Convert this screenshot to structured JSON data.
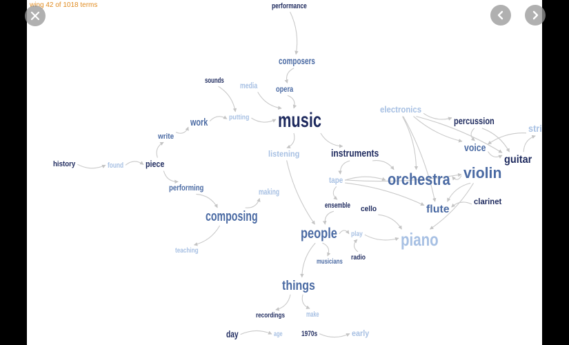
{
  "viewer": {
    "status_text": "wing 42 of 1018 terms"
  },
  "controls": {
    "close_icon": "close-icon",
    "prev_icon": "chevron-left-icon",
    "next_icon": "chevron-right-icon"
  },
  "colors": {
    "dark": "#1e2a5e",
    "mid": "#4a6aa3",
    "light": "#a7c0e3",
    "edge": "#c9c9c9",
    "status": "#e08a1e"
  },
  "graph": {
    "terms": [
      {
        "id": "performance",
        "label": "performance",
        "tone": "dark",
        "size": 11
      },
      {
        "id": "composers",
        "label": "composers",
        "tone": "mid",
        "size": 14
      },
      {
        "id": "sounds",
        "label": "sounds",
        "tone": "dark",
        "size": 11
      },
      {
        "id": "media",
        "label": "media",
        "tone": "light",
        "size": 12
      },
      {
        "id": "opera",
        "label": "opera",
        "tone": "mid",
        "size": 12
      },
      {
        "id": "work",
        "label": "work",
        "tone": "mid",
        "size": 15
      },
      {
        "id": "putting",
        "label": "putting",
        "tone": "light",
        "size": 10
      },
      {
        "id": "music",
        "label": "music",
        "tone": "dark",
        "size": 30
      },
      {
        "id": "electronics",
        "label": "electronics",
        "tone": "light",
        "size": 13
      },
      {
        "id": "percussion",
        "label": "percussion",
        "tone": "dark",
        "size": 14
      },
      {
        "id": "string",
        "label": "string",
        "tone": "light",
        "size": 14
      },
      {
        "id": "write",
        "label": "write",
        "tone": "mid",
        "size": 11
      },
      {
        "id": "voice",
        "label": "voice",
        "tone": "mid",
        "size": 15
      },
      {
        "id": "guitar",
        "label": "guitar",
        "tone": "dark",
        "size": 16
      },
      {
        "id": "listening",
        "label": "listening",
        "tone": "light",
        "size": 12
      },
      {
        "id": "instruments",
        "label": "instruments",
        "tone": "dark",
        "size": 15
      },
      {
        "id": "history",
        "label": "history",
        "tone": "dark",
        "size": 11
      },
      {
        "id": "found",
        "label": "found",
        "tone": "light",
        "size": 11
      },
      {
        "id": "piece",
        "label": "piece",
        "tone": "dark",
        "size": 13
      },
      {
        "id": "violin",
        "label": "violin",
        "tone": "mid",
        "size": 22
      },
      {
        "id": "tape",
        "label": "tape",
        "tone": "light",
        "size": 12
      },
      {
        "id": "orchestra",
        "label": "orchestra",
        "tone": "mid",
        "size": 24
      },
      {
        "id": "performing",
        "label": "performing",
        "tone": "mid",
        "size": 12
      },
      {
        "id": "making",
        "label": "making",
        "tone": "light",
        "size": 12
      },
      {
        "id": "ensemble",
        "label": "ensemble",
        "tone": "dark",
        "size": 11
      },
      {
        "id": "cello",
        "label": "cello",
        "tone": "dark",
        "size": 11
      },
      {
        "id": "clarinet",
        "label": "clarinet",
        "tone": "dark",
        "size": 12
      },
      {
        "id": "flute",
        "label": "flute",
        "tone": "mid",
        "size": 16
      },
      {
        "id": "composing",
        "label": "composing",
        "tone": "mid",
        "size": 20
      },
      {
        "id": "people",
        "label": "people",
        "tone": "mid",
        "size": 21
      },
      {
        "id": "play",
        "label": "play",
        "tone": "light",
        "size": 10
      },
      {
        "id": "piano",
        "label": "piano",
        "tone": "light",
        "size": 26
      },
      {
        "id": "teaching",
        "label": "teaching",
        "tone": "light",
        "size": 10
      },
      {
        "id": "radio",
        "label": "radio",
        "tone": "dark",
        "size": 10
      },
      {
        "id": "musicians",
        "label": "musicians",
        "tone": "mid",
        "size": 10
      },
      {
        "id": "things",
        "label": "things",
        "tone": "mid",
        "size": 19
      },
      {
        "id": "recordings",
        "label": "recordings",
        "tone": "dark",
        "size": 10
      },
      {
        "id": "make",
        "label": "make",
        "tone": "light",
        "size": 11
      },
      {
        "id": "day",
        "label": "day",
        "tone": "dark",
        "size": 14
      },
      {
        "id": "age",
        "label": "age",
        "tone": "light",
        "size": 10
      },
      {
        "id": "1970s",
        "label": "1970s",
        "tone": "dark",
        "size": 11
      },
      {
        "id": "early",
        "label": "early",
        "tone": "light",
        "size": 12
      }
    ],
    "links": [
      [
        "performance",
        "composers"
      ],
      [
        "composers",
        "opera"
      ],
      [
        "opera",
        "music"
      ],
      [
        "media",
        "music"
      ],
      [
        "sounds",
        "putting"
      ],
      [
        "putting",
        "music"
      ],
      [
        "work",
        "putting"
      ],
      [
        "write",
        "work"
      ],
      [
        "piece",
        "write"
      ],
      [
        "history",
        "found"
      ],
      [
        "found",
        "piece"
      ],
      [
        "piece",
        "performing"
      ],
      [
        "performing",
        "composing"
      ],
      [
        "composing",
        "making"
      ],
      [
        "composing",
        "teaching"
      ],
      [
        "music",
        "instruments"
      ],
      [
        "music",
        "listening"
      ],
      [
        "listening",
        "people"
      ],
      [
        "instruments",
        "orchestra"
      ],
      [
        "instruments",
        "tape"
      ],
      [
        "electronics",
        "orchestra"
      ],
      [
        "electronics",
        "percussion"
      ],
      [
        "electronics",
        "guitar"
      ],
      [
        "electronics",
        "voice"
      ],
      [
        "electronics",
        "flute"
      ],
      [
        "percussion",
        "voice"
      ],
      [
        "percussion",
        "guitar"
      ],
      [
        "voice",
        "guitar"
      ],
      [
        "guitar",
        "string"
      ],
      [
        "string",
        "voice"
      ],
      [
        "violin",
        "orchestra"
      ],
      [
        "violin",
        "flute"
      ],
      [
        "violin",
        "piano"
      ],
      [
        "clarinet",
        "flute"
      ],
      [
        "tape",
        "orchestra"
      ],
      [
        "tape",
        "violin"
      ],
      [
        "tape",
        "flute"
      ],
      [
        "tape",
        "ensemble"
      ],
      [
        "cello",
        "piano"
      ],
      [
        "ensemble",
        "people"
      ],
      [
        "people",
        "play"
      ],
      [
        "play",
        "piano"
      ],
      [
        "people",
        "musicians"
      ],
      [
        "people",
        "things"
      ],
      [
        "things",
        "recordings"
      ],
      [
        "things",
        "make"
      ],
      [
        "day",
        "age"
      ],
      [
        "1970s",
        "early"
      ],
      [
        "radio",
        "play"
      ]
    ]
  }
}
